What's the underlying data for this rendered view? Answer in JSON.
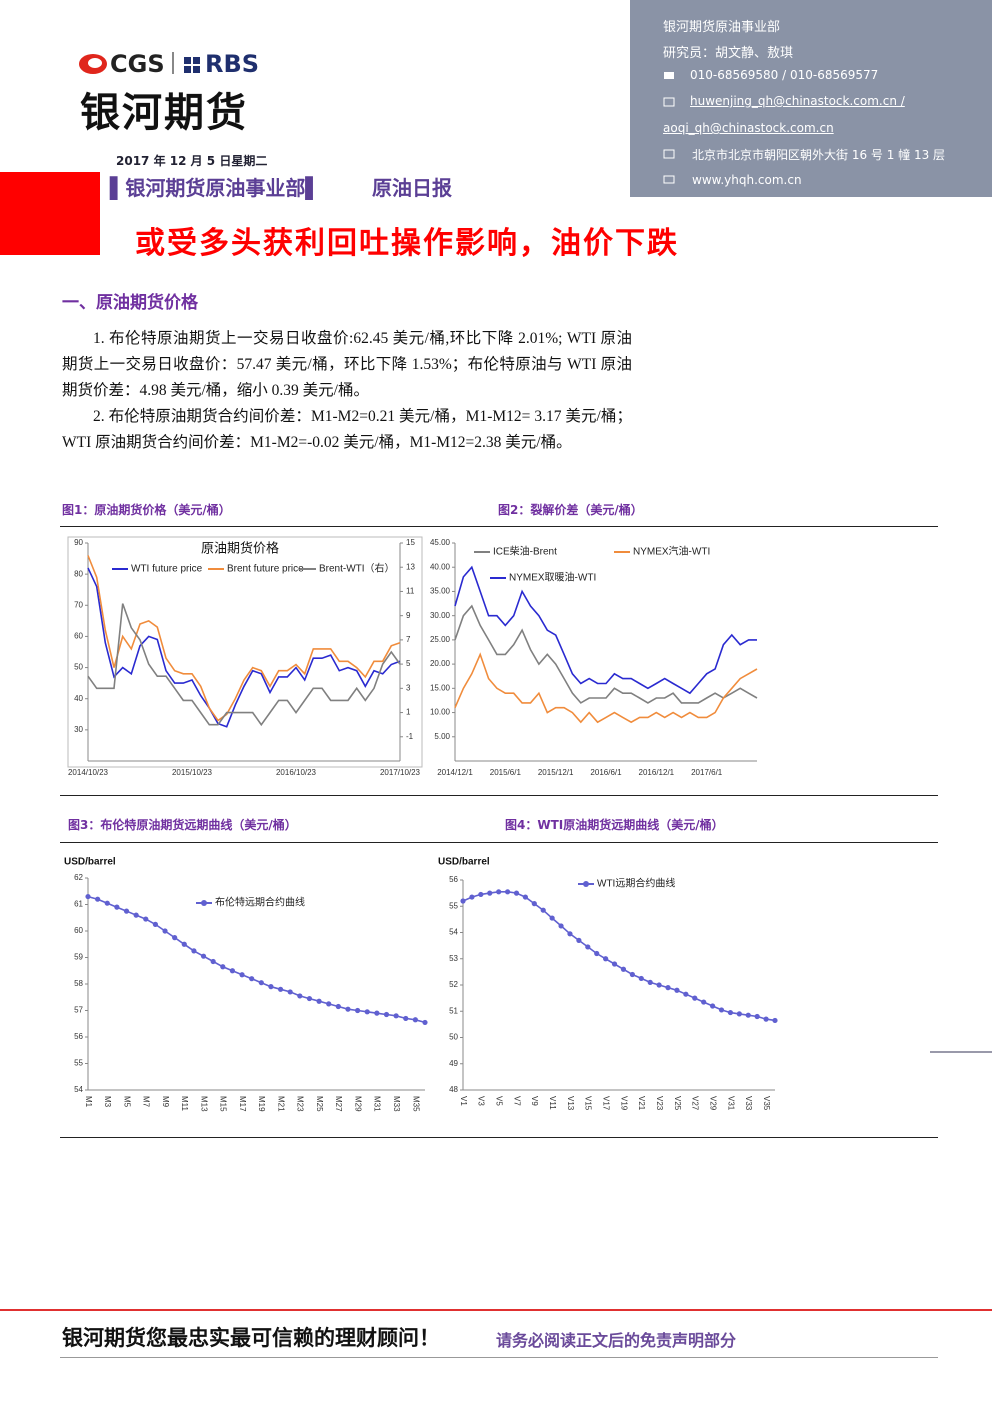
{
  "header": {
    "logo_cgs": "CGS",
    "logo_rbs": "RBS",
    "brand": "银河期货",
    "dept": "银河期货原油事业部",
    "researchers": "研究员：胡文静、敖琪",
    "phone": "010-68569580 / 010-68569577",
    "email1": "huwenjing_qh@chinastock.com.cn /",
    "email2": "aoqi_qh@chinastock.com.cn",
    "address": "北京市北京市朝阳区朝外大街 16 号 1 幢 13 层",
    "website": "www.yhqh.com.cn"
  },
  "date": "2017 年 12 月 5 日星期二",
  "report": {
    "dept": "▌银河期货原油事业部▌",
    "name": "原油日报"
  },
  "headline": "或受多头获利回吐操作影响，油价下跌",
  "section1": {
    "title": "一、原油期货价格",
    "paragraphs": [
      "1. 布伦特原油期货上一交易日收盘价:62.45 美元/桶,环比下降 2.01%; WTI 原油期货上一交易日收盘价：57.47 美元/桶，环比下降 1.53%；布伦特原油与 WTI 原油期货价差：4.98 美元/桶，缩小 0.39 美元/桶。",
      "2. 布伦特原油期货合约间价差：M1-M2=0.21 美元/桶，M1-M12= 3.17 美元/桶；WTI 原油期货合约间价差：M1-M2=-0.02 美元/桶，M1-M12=2.38 美元/桶。"
    ]
  },
  "figures": [
    "图1：原油期货价格（美元/桶）",
    "图2：裂解价差（美元/桶）",
    "图3：布伦特原油期货远期曲线（美元/桶）",
    "图4：WTI原油期货远期曲线（美元/桶）"
  ],
  "chart_data": [
    {
      "type": "line",
      "title": "原油期货价格",
      "categories": [
        "2014/10/23",
        null,
        null,
        null,
        null,
        null,
        null,
        null,
        null,
        null,
        null,
        null,
        "2015/10/23",
        null,
        null,
        null,
        null,
        null,
        null,
        null,
        null,
        null,
        null,
        null,
        "2016/10/23",
        null,
        null,
        null,
        null,
        null,
        null,
        null,
        null,
        null,
        null,
        null,
        "2017/10/23"
      ],
      "ylim": [
        20,
        90
      ],
      "yticks": [
        30,
        40,
        50,
        60,
        70,
        80,
        90
      ],
      "y2lim": [
        -3,
        15
      ],
      "y2ticks": [
        -1,
        1,
        3,
        5,
        7,
        9,
        11,
        13,
        15
      ],
      "series": [
        {
          "name": "WTI future price",
          "color": "#2a2ad0",
          "values": [
            82,
            76,
            58,
            47,
            50,
            48,
            57,
            60,
            59,
            49,
            45,
            45,
            46,
            41,
            37,
            32,
            31,
            38,
            44,
            49,
            48,
            42,
            47,
            47,
            50,
            46,
            53,
            53,
            54,
            49,
            50,
            49,
            44,
            49,
            48,
            51,
            52
          ]
        },
        {
          "name": "Brent future price",
          "color": "#f08c3c",
          "values": [
            86,
            79,
            62,
            50,
            60,
            56,
            64,
            65,
            63,
            53,
            49,
            48,
            48,
            44,
            37,
            33,
            35,
            40,
            46,
            50,
            49,
            44,
            49,
            49,
            51,
            48,
            56,
            56,
            56,
            52,
            52,
            50,
            47,
            52,
            52,
            57,
            58
          ]
        },
        {
          "name": "Brent-WTI（右）",
          "color": "#808080",
          "axis": "y2",
          "values": [
            4,
            3,
            3,
            3,
            10,
            8,
            7,
            5,
            4,
            4,
            3,
            2,
            2,
            1,
            0,
            0,
            1,
            1,
            1,
            1,
            0,
            1,
            2,
            2,
            1,
            2,
            3,
            3,
            2,
            2,
            2,
            3,
            2,
            3,
            5,
            6,
            5
          ]
        }
      ]
    },
    {
      "type": "line",
      "categories": [
        "2014/12/1",
        null,
        null,
        null,
        null,
        null,
        "2015/6/1",
        null,
        null,
        null,
        null,
        null,
        "2015/12/1",
        null,
        null,
        null,
        null,
        null,
        "2016/6/1",
        null,
        null,
        null,
        null,
        null,
        "2016/12/1",
        null,
        null,
        null,
        null,
        null,
        "2017/6/1",
        null,
        null,
        null,
        null,
        null,
        null
      ],
      "ylim": [
        0,
        45
      ],
      "yticks": [
        {
          "value": 5,
          "label": "5.00"
        },
        {
          "value": 10,
          "label": "10.00"
        },
        {
          "value": 15,
          "label": "15.00"
        },
        {
          "value": 20,
          "label": "20.00"
        },
        {
          "value": 25,
          "label": "25.00"
        },
        {
          "value": 30,
          "label": "30.00"
        },
        {
          "value": 35,
          "label": "35.00"
        },
        {
          "value": 40,
          "label": "40.00"
        },
        {
          "value": 45,
          "label": "45.00"
        }
      ],
      "series": [
        {
          "name": "ICE柴油-Brent",
          "color": "#808080",
          "values": [
            25,
            30,
            32,
            28,
            25,
            22,
            22,
            24,
            27,
            23,
            20,
            22,
            20,
            17,
            14,
            12,
            13,
            13,
            13,
            15,
            14,
            14,
            13,
            12,
            13,
            13,
            14,
            12,
            12,
            12,
            13,
            14,
            13,
            14,
            15,
            14,
            13
          ]
        },
        {
          "name": "NYMEX汽油-WTI",
          "color": "#f08c3c",
          "values": [
            11,
            15,
            18,
            22,
            17,
            15,
            14,
            14,
            12,
            12,
            14,
            10,
            11,
            11,
            10,
            8,
            10,
            8,
            9,
            10,
            9,
            8,
            9,
            9,
            10,
            9,
            10,
            9,
            10,
            9,
            9,
            10,
            13,
            15,
            17,
            18,
            19
          ]
        },
        {
          "name": "NYMEX取暖油-WTI",
          "color": "#2a2ad0",
          "values": [
            32,
            38,
            40,
            35,
            30,
            30,
            28,
            30,
            35,
            32,
            30,
            27,
            26,
            22,
            18,
            16,
            17,
            16,
            16,
            18,
            17,
            17,
            16,
            15,
            16,
            17,
            16,
            15,
            14,
            16,
            18,
            19,
            24,
            26,
            24,
            25,
            25
          ]
        }
      ]
    },
    {
      "type": "line",
      "y_label": "USD/barrel",
      "categories": [
        "M1",
        null,
        "M3",
        null,
        "M5",
        null,
        "M7",
        null,
        "M9",
        null,
        "M11",
        null,
        "M13",
        null,
        "M15",
        null,
        "M17",
        null,
        "M19",
        null,
        "M21",
        null,
        "M23",
        null,
        "M25",
        null,
        "M27",
        null,
        "M29",
        null,
        "M31",
        null,
        "M33",
        null,
        "M35",
        null
      ],
      "ylim": [
        54,
        62
      ],
      "yticks": [
        54,
        55,
        56,
        57,
        58,
        59,
        60,
        61,
        62
      ],
      "markers": true,
      "series": [
        {
          "name": "布伦特远期合约曲线",
          "color": "#6060d0",
          "values": [
            61.3,
            61.2,
            61.05,
            60.9,
            60.75,
            60.6,
            60.45,
            60.25,
            60.0,
            59.75,
            59.5,
            59.25,
            59.05,
            58.85,
            58.65,
            58.5,
            58.35,
            58.2,
            58.05,
            57.9,
            57.8,
            57.7,
            57.55,
            57.45,
            57.35,
            57.25,
            57.15,
            57.05,
            57.0,
            56.95,
            56.9,
            56.85,
            56.8,
            56.7,
            56.65,
            56.55
          ]
        }
      ]
    },
    {
      "type": "line",
      "y_label": "USD/barrel",
      "categories": [
        "V1",
        null,
        "V3",
        null,
        "V5",
        null,
        "V7",
        null,
        "V9",
        null,
        "V11",
        null,
        "V13",
        null,
        "V15",
        null,
        "V17",
        null,
        "V19",
        null,
        "V21",
        null,
        "V23",
        null,
        "V25",
        null,
        "V27",
        null,
        "V29",
        null,
        "V31",
        null,
        "V33",
        null,
        "V35",
        null
      ],
      "ylim": [
        48,
        56
      ],
      "yticks": [
        48,
        49,
        50,
        51,
        52,
        53,
        54,
        55,
        56
      ],
      "markers": true,
      "series": [
        {
          "name": "WTI远期合约曲线",
          "color": "#6060d0",
          "values": [
            55.2,
            55.35,
            55.45,
            55.5,
            55.55,
            55.55,
            55.5,
            55.35,
            55.1,
            54.85,
            54.55,
            54.25,
            53.95,
            53.7,
            53.45,
            53.2,
            53.0,
            52.8,
            52.6,
            52.4,
            52.25,
            52.1,
            52.0,
            51.9,
            51.8,
            51.65,
            51.5,
            51.35,
            51.2,
            51.05,
            50.95,
            50.9,
            50.85,
            50.8,
            50.7,
            50.65
          ]
        }
      ]
    }
  ],
  "footer": {
    "slogan": "银河期货您最忠实最可信赖的理财顾问！",
    "disclaimer": "请务必阅读正文后的免责声明部分"
  }
}
